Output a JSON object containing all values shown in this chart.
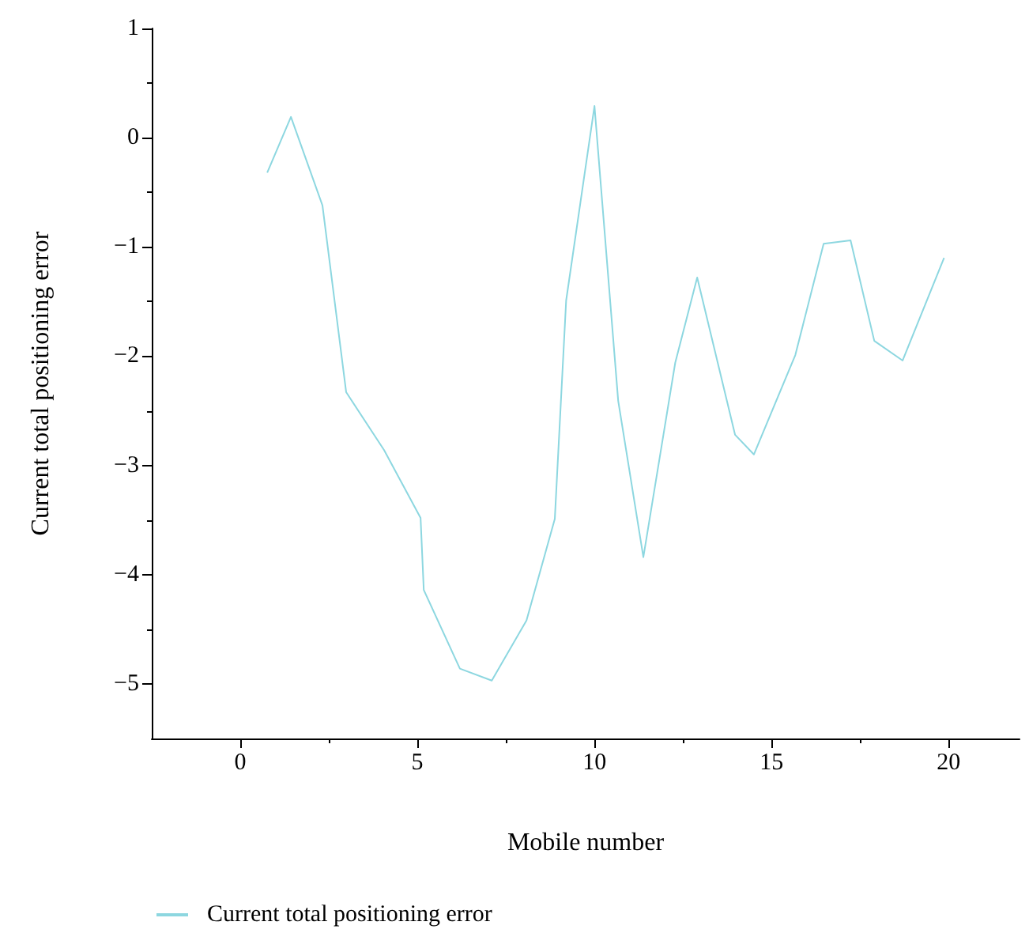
{
  "chart_data": {
    "type": "line",
    "xlabel": "Mobile number",
    "ylabel": "Current total positioning error",
    "x": [
      0.76,
      1.43,
      2.32,
      2.99,
      4.06,
      5.09,
      5.18,
      6.2,
      7.1,
      8.08,
      8.88,
      9.2,
      10.0,
      10.67,
      11.38,
      12.28,
      12.9,
      13.97,
      14.5,
      15.67,
      16.47,
      17.23,
      17.9,
      18.7,
      19.87
    ],
    "series": [
      {
        "name": "Current total positioning error",
        "color": "#8dd7e0",
        "values": [
          -0.32,
          0.19,
          -0.62,
          -2.33,
          -2.86,
          -3.48,
          -4.14,
          -4.86,
          -4.97,
          -4.42,
          -3.49,
          -1.49,
          0.29,
          -2.41,
          -3.84,
          -2.06,
          -1.28,
          -2.72,
          -2.9,
          -1.99,
          -0.97,
          -0.94,
          -1.86,
          -2.04,
          -1.1
        ]
      }
    ],
    "xlim": [
      -2.5,
      22
    ],
    "xticks": [
      0,
      5,
      10,
      15,
      20
    ],
    "ylim": [
      -5.5,
      1
    ],
    "yticks": [
      -5,
      -4,
      -3,
      -2,
      -1,
      0,
      1
    ],
    "grid": false,
    "legend": "bottom left",
    "marker": "none",
    "line_style": "solid"
  }
}
